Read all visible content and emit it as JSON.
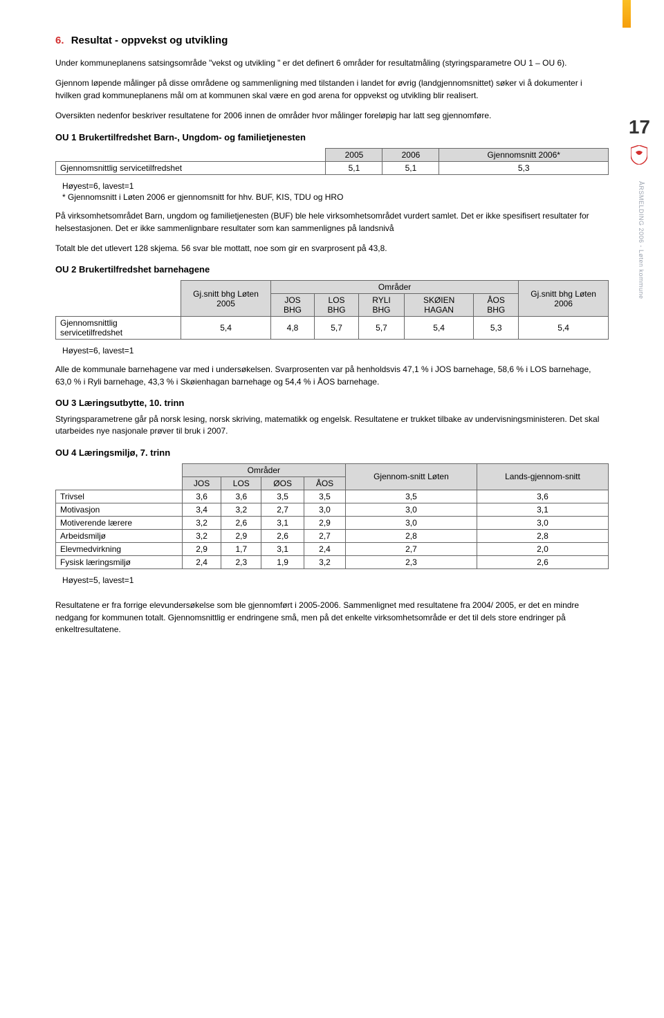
{
  "pageNumber": "17",
  "verticalText": "ÅRSMELDING 2006 - Løten kommune",
  "section": {
    "number": "6.",
    "title": "Resultat - oppvekst og utvikling"
  },
  "p1": "Under kommuneplanens satsingsområde \"vekst og utvikling \" er det definert 6 områder for resultatmåling (styringsparametre OU 1 – OU 6).",
  "p2": "Gjennom løpende målinger på disse områdene og sammenligning med tilstanden i landet for øvrig (landgjennomsnittet) søker vi å dokumenter i hvilken grad kommuneplanens mål om at kommunen skal være en god arena for oppvekst og utvikling blir realisert.",
  "p3": "Oversikten nedenfor beskriver resultatene for 2006 innen de områder hvor målinger foreløpig har latt seg gjennomføre.",
  "ou1": {
    "heading": "OU 1 Brukertilfredshet Barn-, Ungdom- og familietjenesten",
    "cols": [
      "2005",
      "2006",
      "Gjennomsnitt 2006*"
    ],
    "rowLabel": "Gjennomsnittlig servicetilfredshet",
    "row": [
      "5,1",
      "5,1",
      "5,3"
    ],
    "note1": "Høyest=6, lavest=1",
    "note2": "* Gjennomsnitt i Løten 2006 er gjennomsnitt  for hhv. BUF, KIS, TDU og HRO",
    "para1": "På virksomhetsområdet Barn, ungdom og familietjenesten (BUF) ble hele virksomhetsområdet vurdert samlet. Det er ikke spesifisert resultater for helsestasjonen. Det er ikke sammenlignbare resultater som kan sammenlignes på landsnivå",
    "para2": "Totalt ble det utlevert 128 skjema. 56 svar ble mottatt, noe som gir en svarprosent på 43,8."
  },
  "ou2": {
    "heading": "OU 2 Brukertilfredshet barnehagene",
    "head": {
      "c1": "Gj.snitt bhg Løten 2005",
      "c2g": "Områder",
      "c2a": "JOS BHG",
      "c2b": "LOS BHG",
      "c2c": "RYLI BHG",
      "c2d": "SKØIEN HAGAN",
      "c2e": "ÅOS BHG",
      "c3": "Gj.snitt bhg Løten 2006"
    },
    "rowLabel": "Gjennomsnittlig servicetilfredshet",
    "row": [
      "5,4",
      "4,8",
      "5,7",
      "5,7",
      "5,4",
      "5,3",
      "5,4"
    ],
    "note": "Høyest=6, lavest=1",
    "para": "Alle de kommunale barnehagene var med i undersøkelsen. Svarprosenten var på henholdsvis 47,1 % i JOS barnehage, 58,6 % i LOS barnehage, 63,0 % i Ryli barnehage, 43,3 % i Skøienhagan barnehage og 54,4  % i ÅOS barnehage."
  },
  "ou3": {
    "heading": "OU 3   Læringsutbytte, 10. trinn",
    "para": "Styringsparametrene  går på norsk lesing, norsk skriving, matematikk og engelsk. Resultatene er trukket tilbake av undervisningsministeren. Det skal utarbeides nye nasjonale prøver til bruk i 2007."
  },
  "ou4": {
    "heading": "OU 4   Læringsmiljø, 7. trinn",
    "head": {
      "grp": "Områder",
      "c1": "JOS",
      "c2": "LOS",
      "c3": "ØOS",
      "c4": "ÅOS",
      "c5": "Gjennom-snitt Løten",
      "c6": "Lands-gjennom-snitt"
    },
    "rows": [
      {
        "label": "Trivsel",
        "v": [
          "3,6",
          "3,6",
          "3,5",
          "3,5",
          "3,5",
          "3,6"
        ]
      },
      {
        "label": "Motivasjon",
        "v": [
          "3,4",
          "3,2",
          "2,7",
          "3,0",
          "3,0",
          "3,1"
        ]
      },
      {
        "label": "Motiverende lærere",
        "v": [
          "3,2",
          "2,6",
          "3,1",
          "2,9",
          "3,0",
          "3,0"
        ]
      },
      {
        "label": "Arbeidsmiljø",
        "v": [
          "3,2",
          "2,9",
          "2,6",
          "2,7",
          "2,8",
          "2,8"
        ]
      },
      {
        "label": "Elevmedvirkning",
        "v": [
          "2,9",
          "1,7",
          "3,1",
          "2,4",
          "2,7",
          "2,0"
        ]
      },
      {
        "label": "Fysisk læringsmiljø",
        "v": [
          "2,4",
          "2,3",
          "1,9",
          "3,2",
          "2,3",
          "2,6"
        ]
      }
    ],
    "note": "Høyest=5, lavest=1",
    "para": "Resultatene er fra forrige elevundersøkelse som ble gjennomført i 2005-2006. Sammenlignet med resultatene fra 2004/ 2005, er det en mindre nedgang for kommunen totalt. Gjennomsnittlig er endringene små, men på det enkelte virksomhetsområde er det til dels store endringer på enkeltresultatene."
  }
}
